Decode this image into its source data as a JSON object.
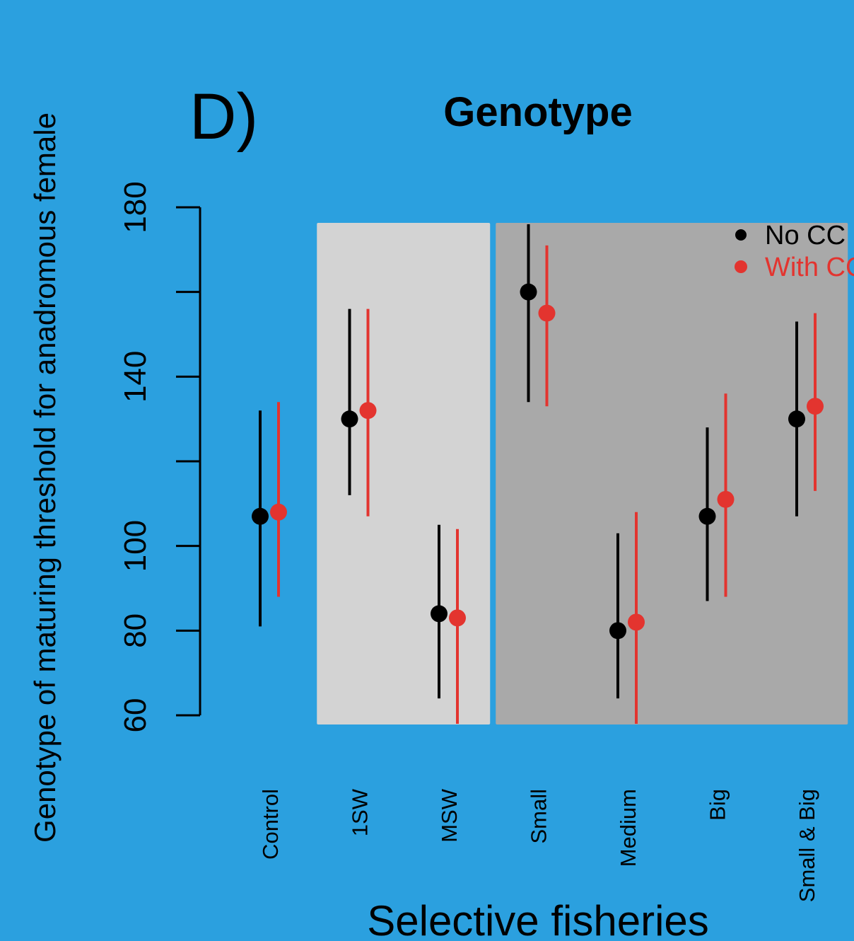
{
  "panel_label": "D)",
  "chart_data": {
    "type": "scatter",
    "title": "Genotype",
    "xlabel": "Selective fisheries",
    "ylabel": "Genotype of maturing threshold for anadromous female",
    "ylim": [
      60,
      180
    ],
    "yticks": [
      60,
      80,
      100,
      140,
      180
    ],
    "categories": [
      "Control",
      "1SW",
      "MSW",
      "Small",
      "Medium",
      "Big",
      "Small & Big"
    ],
    "shaded_groups": [
      {
        "categories": [
          "1SW",
          "MSW"
        ],
        "color": "#d3d3d3"
      },
      {
        "categories": [
          "Small",
          "Medium",
          "Big",
          "Small & Big"
        ],
        "color": "#a9a9a9"
      }
    ],
    "legend_position": "top-right",
    "series": [
      {
        "name": "No CC",
        "color": "#000000",
        "values": [
          107,
          130,
          84,
          160,
          80,
          107,
          130
        ],
        "lower": [
          81,
          112,
          64,
          134,
          64,
          87,
          107
        ],
        "upper": [
          132,
          156,
          105,
          176,
          103,
          128,
          153
        ]
      },
      {
        "name": "With CC",
        "color": "#e3342f",
        "values": [
          108,
          132,
          83,
          155,
          82,
          111,
          133
        ],
        "lower": [
          88,
          107,
          58,
          133,
          58,
          88,
          113
        ],
        "upper": [
          134,
          156,
          104,
          171,
          108,
          136,
          155
        ]
      }
    ]
  }
}
